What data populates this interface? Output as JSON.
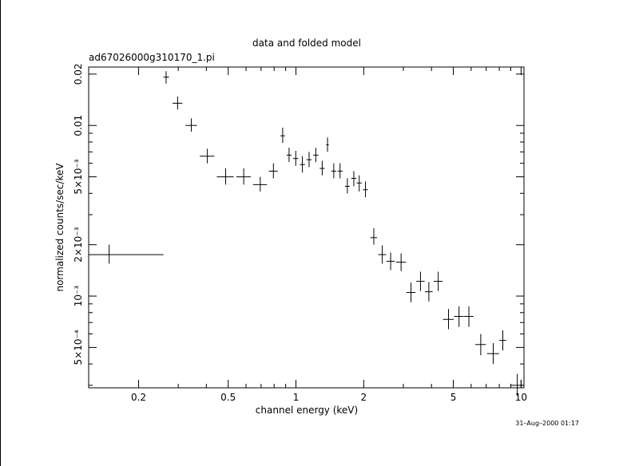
{
  "chart_data": {
    "type": "scatter",
    "title": "data and folded model",
    "subtitle": "ad67026000g310170_1.pi",
    "xlabel": "channel energy (keV)",
    "ylabel": "normalized counts/sec/keV",
    "x_scale": "log",
    "y_scale": "log",
    "xlim": [
      0.12,
      10.3
    ],
    "ylim": [
      0.00029,
      0.022
    ],
    "grid": false,
    "x_ticks": [
      {
        "value": 0.2,
        "label": "0.2"
      },
      {
        "value": 0.5,
        "label": "0.5"
      },
      {
        "value": 1,
        "label": "1"
      },
      {
        "value": 2,
        "label": "2"
      },
      {
        "value": 5,
        "label": "5"
      },
      {
        "value": 10,
        "label": "10"
      }
    ],
    "y_ticks": [
      {
        "value": 0.0005,
        "label": "5×10⁻⁴"
      },
      {
        "value": 0.001,
        "label": "10⁻³"
      },
      {
        "value": 0.002,
        "label": "2×10⁻³"
      },
      {
        "value": 0.005,
        "label": "5×10⁻³"
      },
      {
        "value": 0.01,
        "label": "0.01"
      },
      {
        "value": 0.02,
        "label": "0.02"
      }
    ],
    "timestamp": "31–Aug–2000 01:17",
    "series": [
      {
        "points": [
          {
            "x": 0.148,
            "xlo": 0.12,
            "xhi": 0.258,
            "y": 0.00175,
            "ylo": 0.00155,
            "yhi": 0.002
          },
          {
            "x": 0.265,
            "xlo": 0.258,
            "xhi": 0.273,
            "y": 0.0192,
            "ylo": 0.0176,
            "yhi": 0.0208
          },
          {
            "x": 0.298,
            "xlo": 0.283,
            "xhi": 0.313,
            "y": 0.0135,
            "ylo": 0.0124,
            "yhi": 0.0148
          },
          {
            "x": 0.343,
            "xlo": 0.323,
            "xhi": 0.363,
            "y": 0.01,
            "ylo": 0.0092,
            "yhi": 0.011
          },
          {
            "x": 0.404,
            "xlo": 0.374,
            "xhi": 0.434,
            "y": 0.0066,
            "ylo": 0.006,
            "yhi": 0.0073
          },
          {
            "x": 0.487,
            "xlo": 0.445,
            "xhi": 0.529,
            "y": 0.005,
            "ylo": 0.0045,
            "yhi": 0.0056
          },
          {
            "x": 0.586,
            "xlo": 0.543,
            "xhi": 0.63,
            "y": 0.005,
            "ylo": 0.0045,
            "yhi": 0.0056
          },
          {
            "x": 0.694,
            "xlo": 0.645,
            "xhi": 0.743,
            "y": 0.0045,
            "ylo": 0.0041,
            "yhi": 0.005
          },
          {
            "x": 0.794,
            "xlo": 0.758,
            "xhi": 0.83,
            "y": 0.0054,
            "ylo": 0.0049,
            "yhi": 0.006
          },
          {
            "x": 0.873,
            "xlo": 0.853,
            "xhi": 0.893,
            "y": 0.0087,
            "ylo": 0.0079,
            "yhi": 0.0097
          },
          {
            "x": 0.932,
            "xlo": 0.909,
            "xhi": 0.955,
            "y": 0.0067,
            "ylo": 0.0061,
            "yhi": 0.0074
          },
          {
            "x": 0.998,
            "xlo": 0.972,
            "xhi": 1.024,
            "y": 0.0064,
            "ylo": 0.0058,
            "yhi": 0.0071
          },
          {
            "x": 1.068,
            "xlo": 1.04,
            "xhi": 1.096,
            "y": 0.0059,
            "ylo": 0.0053,
            "yhi": 0.0066
          },
          {
            "x": 1.144,
            "xlo": 1.114,
            "xhi": 1.174,
            "y": 0.0063,
            "ylo": 0.0057,
            "yhi": 0.007
          },
          {
            "x": 1.225,
            "xlo": 1.193,
            "xhi": 1.257,
            "y": 0.0067,
            "ylo": 0.0061,
            "yhi": 0.0074
          },
          {
            "x": 1.308,
            "xlo": 1.275,
            "xhi": 1.341,
            "y": 0.0056,
            "ylo": 0.0051,
            "yhi": 0.0062
          },
          {
            "x": 1.381,
            "xlo": 1.363,
            "xhi": 1.399,
            "y": 0.0077,
            "ylo": 0.007,
            "yhi": 0.0085
          },
          {
            "x": 1.472,
            "xlo": 1.434,
            "xhi": 1.51,
            "y": 0.0054,
            "ylo": 0.0049,
            "yhi": 0.006
          },
          {
            "x": 1.57,
            "xlo": 1.53,
            "xhi": 1.61,
            "y": 0.0054,
            "ylo": 0.0049,
            "yhi": 0.006
          },
          {
            "x": 1.692,
            "xlo": 1.65,
            "xhi": 1.734,
            "y": 0.0044,
            "ylo": 0.004,
            "yhi": 0.0049
          },
          {
            "x": 1.807,
            "xlo": 1.76,
            "xhi": 1.854,
            "y": 0.0049,
            "ylo": 0.0044,
            "yhi": 0.0054
          },
          {
            "x": 1.91,
            "xlo": 1.86,
            "xhi": 1.96,
            "y": 0.0046,
            "ylo": 0.0041,
            "yhi": 0.0051
          },
          {
            "x": 2.036,
            "xlo": 1.985,
            "xhi": 2.087,
            "y": 0.0042,
            "ylo": 0.0038,
            "yhi": 0.0047
          },
          {
            "x": 2.217,
            "xlo": 2.14,
            "xhi": 2.294,
            "y": 0.0022,
            "ylo": 0.002,
            "yhi": 0.0025
          },
          {
            "x": 2.418,
            "xlo": 2.32,
            "xhi": 2.516,
            "y": 0.00175,
            "ylo": 0.00155,
            "yhi": 0.00198
          },
          {
            "x": 2.634,
            "xlo": 2.52,
            "xhi": 2.748,
            "y": 0.0016,
            "ylo": 0.00142,
            "yhi": 0.0018
          },
          {
            "x": 2.931,
            "xlo": 2.78,
            "xhi": 3.082,
            "y": 0.00158,
            "ylo": 0.0014,
            "yhi": 0.00178
          },
          {
            "x": 3.244,
            "xlo": 3.09,
            "xhi": 3.398,
            "y": 0.00105,
            "ylo": 0.00092,
            "yhi": 0.0012
          },
          {
            "x": 3.574,
            "xlo": 3.42,
            "xhi": 3.728,
            "y": 0.00122,
            "ylo": 0.00107,
            "yhi": 0.00139
          },
          {
            "x": 3.893,
            "xlo": 3.74,
            "xhi": 4.046,
            "y": 0.00106,
            "ylo": 0.00093,
            "yhi": 0.00121
          },
          {
            "x": 4.285,
            "xlo": 4.09,
            "xhi": 4.48,
            "y": 0.00122,
            "ylo": 0.00107,
            "yhi": 0.00139
          },
          {
            "x": 4.759,
            "xlo": 4.5,
            "xhi": 5.018,
            "y": 0.00073,
            "ylo": 0.00064,
            "yhi": 0.00084
          },
          {
            "x": 5.302,
            "xlo": 5.04,
            "xhi": 5.564,
            "y": 0.00076,
            "ylo": 0.00066,
            "yhi": 0.00087
          },
          {
            "x": 5.863,
            "xlo": 5.58,
            "xhi": 6.146,
            "y": 0.00076,
            "ylo": 0.00066,
            "yhi": 0.00087
          },
          {
            "x": 6.621,
            "xlo": 6.26,
            "xhi": 6.982,
            "y": 0.00052,
            "ylo": 0.00045,
            "yhi": 0.0006
          },
          {
            "x": 7.522,
            "xlo": 7.06,
            "xhi": 7.984,
            "y": 0.00046,
            "ylo": 0.0004,
            "yhi": 0.00053
          },
          {
            "x": 8.295,
            "xlo": 8.0,
            "xhi": 8.59,
            "y": 0.00055,
            "ylo": 0.00048,
            "yhi": 0.00063
          },
          {
            "x": 9.62,
            "xlo": 9.0,
            "xhi": 10.24,
            "y": 0.0003,
            "ylo": 0.00026,
            "yhi": 0.00035
          }
        ]
      }
    ]
  }
}
